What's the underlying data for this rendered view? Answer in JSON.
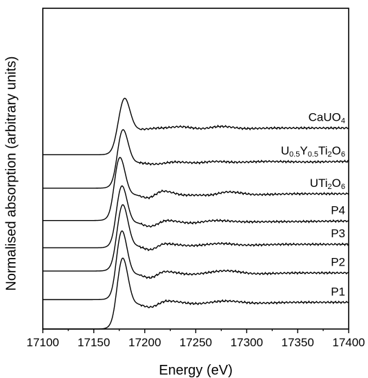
{
  "chart_data": {
    "type": "line",
    "xlabel": "Energy (eV)",
    "ylabel": "Normalised absorption (arbitrary units)",
    "xlim": [
      17100,
      17400
    ],
    "ylim": [
      0,
      12
    ],
    "xticks": [
      17100,
      17150,
      17200,
      17250,
      17300,
      17350,
      17400
    ],
    "yticks_shown": false,
    "grid": false,
    "series": [
      {
        "name": "CaUO4",
        "label_parts": [
          [
            "CaUO",
            ""
          ],
          [
            "4",
            "sub"
          ]
        ],
        "offset": 6.52,
        "edge": 17171,
        "peak": 17180,
        "amp": 1.3,
        "post": [
          [
            17195,
            0.95
          ],
          [
            17215,
            1.0
          ],
          [
            17235,
            1.05
          ],
          [
            17255,
            0.98
          ],
          [
            17275,
            1.06
          ],
          [
            17300,
            0.98
          ],
          [
            17330,
            1.0
          ],
          [
            17400,
            1.0
          ]
        ]
      },
      {
        "name": "U0.5Y0.5Ti2O6",
        "label_parts": [
          [
            "U",
            ""
          ],
          [
            "0.5",
            "sub"
          ],
          [
            "Y",
            ""
          ],
          [
            "0.5",
            "sub"
          ],
          [
            "Ti",
            ""
          ],
          [
            "2",
            "sub"
          ],
          [
            "O",
            ""
          ],
          [
            "6",
            "sub"
          ]
        ],
        "offset": 5.27,
        "edge": 17171,
        "peak": 17178,
        "amp": 1.45,
        "post": [
          [
            17192,
            0.95
          ],
          [
            17210,
            0.9
          ],
          [
            17230,
            0.98
          ],
          [
            17250,
            0.95
          ],
          [
            17270,
            1.0
          ],
          [
            17290,
            0.97
          ],
          [
            17320,
            1.0
          ],
          [
            17360,
            0.98
          ],
          [
            17400,
            1.0
          ]
        ]
      },
      {
        "name": "UTi2O6",
        "label_parts": [
          [
            "UTi",
            ""
          ],
          [
            "2",
            "sub"
          ],
          [
            "O",
            ""
          ],
          [
            "6",
            "sub"
          ]
        ],
        "offset": 4.06,
        "edge": 17168,
        "peak": 17175,
        "amp": 1.65,
        "post": [
          [
            17190,
            0.95
          ],
          [
            17203,
            0.85
          ],
          [
            17218,
            1.1
          ],
          [
            17240,
            0.95
          ],
          [
            17262,
            0.95
          ],
          [
            17282,
            1.07
          ],
          [
            17310,
            0.97
          ],
          [
            17350,
            1.0
          ],
          [
            17400,
            1.0
          ]
        ]
      },
      {
        "name": "P4",
        "label_parts": [
          [
            "P4",
            ""
          ]
        ],
        "offset": 3.04,
        "edge": 17170,
        "peak": 17177,
        "amp": 1.6,
        "post": [
          [
            17192,
            0.92
          ],
          [
            17205,
            0.8
          ],
          [
            17222,
            1.02
          ],
          [
            17245,
            0.93
          ],
          [
            17270,
            1.02
          ],
          [
            17300,
            0.97
          ],
          [
            17340,
            0.98
          ],
          [
            17400,
            1.0
          ]
        ]
      },
      {
        "name": "P3",
        "label_parts": [
          [
            "P3",
            ""
          ]
        ],
        "offset": 2.17,
        "edge": 17170,
        "peak": 17178,
        "amp": 1.75,
        "post": [
          [
            17192,
            0.92
          ],
          [
            17205,
            0.8
          ],
          [
            17220,
            1.02
          ],
          [
            17245,
            0.95
          ],
          [
            17275,
            1.03
          ],
          [
            17300,
            0.97
          ],
          [
            17340,
            1.0
          ],
          [
            17400,
            1.0
          ]
        ]
      },
      {
        "name": "P2",
        "label_parts": [
          [
            "P2",
            ""
          ]
        ],
        "offset": 1.1,
        "edge": 17170,
        "peak": 17177,
        "amp": 1.9,
        "post": [
          [
            17192,
            0.93
          ],
          [
            17205,
            0.82
          ],
          [
            17220,
            1.05
          ],
          [
            17245,
            0.95
          ],
          [
            17280,
            1.08
          ],
          [
            17310,
            0.97
          ],
          [
            17350,
            1.0
          ],
          [
            17400,
            1.0
          ]
        ]
      },
      {
        "name": "P1",
        "label_parts": [
          [
            "P1",
            ""
          ]
        ],
        "offset": 0.0,
        "edge": 17170,
        "peak": 17178,
        "amp": 1.95,
        "post": [
          [
            17192,
            0.92
          ],
          [
            17205,
            0.82
          ],
          [
            17222,
            1.05
          ],
          [
            17250,
            0.95
          ],
          [
            17280,
            1.05
          ],
          [
            17310,
            0.97
          ],
          [
            17350,
            1.0
          ],
          [
            17400,
            1.0
          ]
        ]
      }
    ]
  }
}
